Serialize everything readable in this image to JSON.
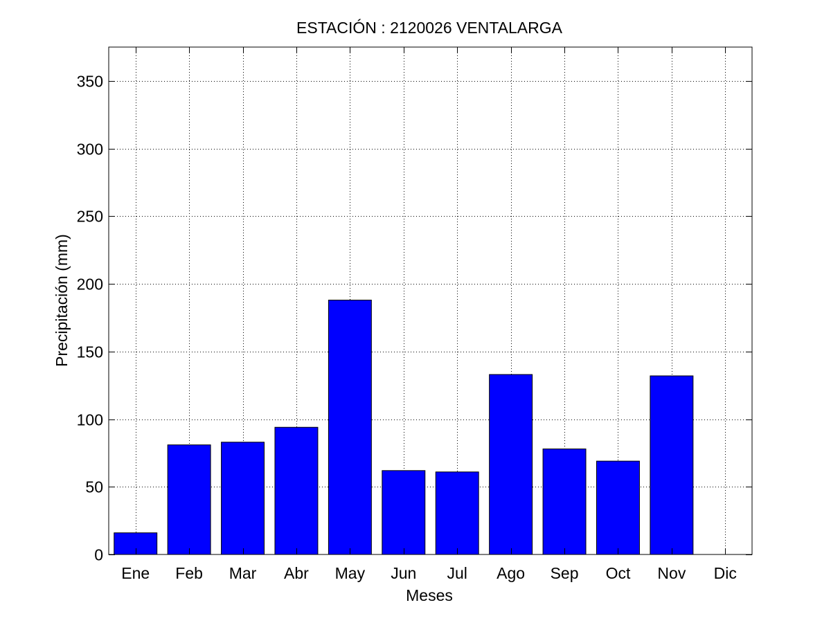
{
  "chart_data": {
    "type": "bar",
    "title": "ESTACIÓN :  2120026  VENTALARGA",
    "xlabel": "Meses",
    "ylabel": "Precipitación (mm)",
    "categories": [
      "Ene",
      "Feb",
      "Mar",
      "Abr",
      "May",
      "Jun",
      "Jul",
      "Ago",
      "Sep",
      "Oct",
      "Nov",
      "Dic"
    ],
    "values": [
      16,
      81,
      83,
      94,
      188,
      62,
      61,
      133,
      78,
      69,
      132,
      0
    ],
    "ylim": [
      0,
      375
    ],
    "yticks": [
      0,
      50,
      100,
      150,
      200,
      250,
      300,
      350
    ],
    "xlim": [
      0.5,
      12.5
    ],
    "grid": true,
    "bar_color": "#0000ff"
  }
}
